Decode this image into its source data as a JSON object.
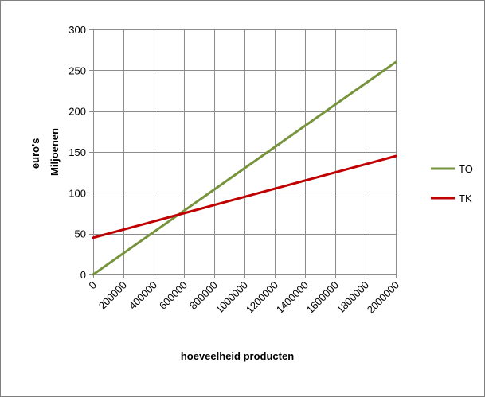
{
  "chart_data": {
    "type": "line",
    "title": "",
    "xlabel": "hoeveelheid producten",
    "ylabel_lines": [
      "euro's",
      "Miljoenen"
    ],
    "x": [
      0,
      200000,
      400000,
      600000,
      800000,
      1000000,
      1200000,
      1400000,
      1600000,
      1800000,
      2000000
    ],
    "x_tick_labels": [
      "0",
      "200000",
      "400000",
      "600000",
      "800000",
      "1000000",
      "1200000",
      "1400000",
      "1600000",
      "1800000",
      "2000000"
    ],
    "xlim": [
      0,
      2000000
    ],
    "y_ticks": [
      0,
      50,
      100,
      150,
      200,
      250,
      300
    ],
    "y_tick_labels": [
      "0",
      "50",
      "100",
      "150",
      "200",
      "250",
      "300"
    ],
    "ylim": [
      0,
      300
    ],
    "grid": true,
    "legend_position": "right",
    "series": [
      {
        "name": "TO",
        "color": "#77933c",
        "values": [
          0,
          26,
          52,
          78,
          104,
          130,
          156,
          182,
          208,
          234,
          260
        ]
      },
      {
        "name": "TK",
        "color": "#c00000",
        "values": [
          45,
          55,
          65,
          75,
          85,
          95,
          105,
          115,
          125,
          135,
          145
        ]
      }
    ]
  }
}
